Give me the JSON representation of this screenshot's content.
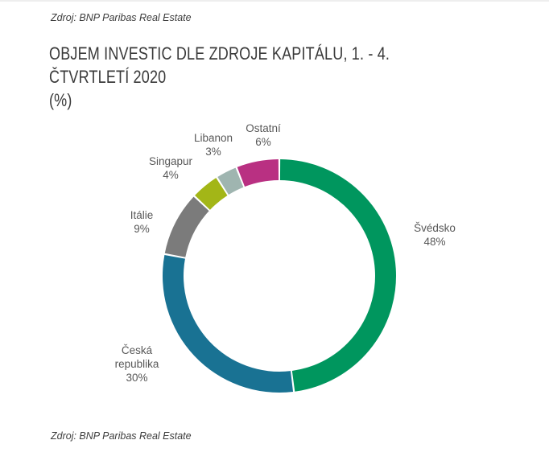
{
  "source_top": "Zdroj: BNP Paribas Real Estate",
  "source_bottom": "Zdroj: BNP Paribas Real Estate",
  "title_line1": "OBJEM INVESTIC DLE ZDROJE KAPITÁLU, 1. - 4. ČTVRTLETÍ 2020",
  "title_line2": "(%)",
  "chart_data": {
    "type": "pie",
    "variant": "donut",
    "unit": "%",
    "slices": [
      {
        "name": "Švédsko",
        "label_lines": [
          "Švédsko"
        ],
        "value": 48,
        "value_label": "48%",
        "color": "#00965e"
      },
      {
        "name": "Česká republika",
        "label_lines": [
          "Česká",
          "republika"
        ],
        "value": 30,
        "value_label": "30%",
        "color": "#197293"
      },
      {
        "name": "Itálie",
        "label_lines": [
          "Itálie"
        ],
        "value": 9,
        "value_label": "9%",
        "color": "#7b7b7b"
      },
      {
        "name": "Singapur",
        "label_lines": [
          "Singapur"
        ],
        "value": 4,
        "value_label": "4%",
        "color": "#a3b617"
      },
      {
        "name": "Libanon",
        "label_lines": [
          "Libanon"
        ],
        "value": 3,
        "value_label": "3%",
        "color": "#9fb5b0"
      },
      {
        "name": "Ostatní",
        "label_lines": [
          "Ostatní"
        ],
        "value": 6,
        "value_label": "6%",
        "color": "#b93082"
      }
    ]
  }
}
